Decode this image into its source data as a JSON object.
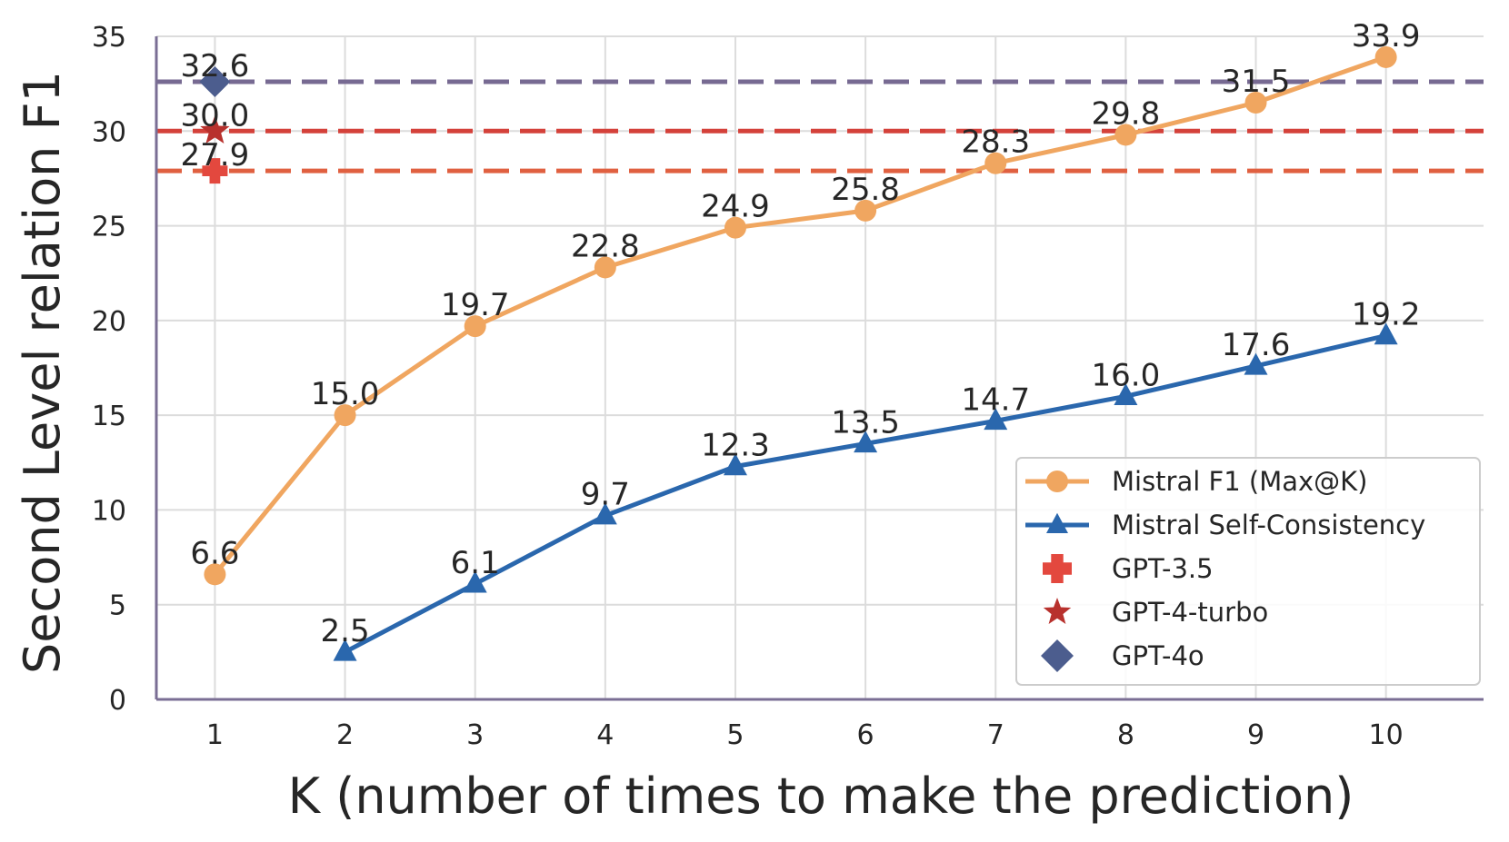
{
  "chart_data": {
    "type": "line",
    "title": "",
    "xlabel": "K (number of times to make the prediction)",
    "ylabel": "Second Level relation F1",
    "x": [
      1,
      2,
      3,
      4,
      5,
      6,
      7,
      8,
      9,
      10
    ],
    "xticks": [
      "1",
      "2",
      "3",
      "4",
      "5",
      "6",
      "7",
      "8",
      "9",
      "10"
    ],
    "yticks": [
      "0",
      "5",
      "10",
      "15",
      "20",
      "25",
      "30",
      "35"
    ],
    "ylim": [
      0,
      35
    ],
    "grid": true,
    "legend_position": "lower-right",
    "series": [
      {
        "name": "Mistral F1 (Max@K)",
        "x": [
          1,
          2,
          3,
          4,
          5,
          6,
          7,
          8,
          9,
          10
        ],
        "values": [
          6.6,
          15.0,
          19.7,
          22.8,
          24.9,
          25.8,
          28.3,
          29.8,
          31.5,
          33.9
        ],
        "labels": [
          "6.6",
          "15.0",
          "19.7",
          "22.8",
          "24.9",
          "25.8",
          "28.3",
          "29.8",
          "31.5",
          "33.9"
        ],
        "color": "#f0a660",
        "marker": "circle"
      },
      {
        "name": "Mistral Self-Consistency",
        "x": [
          2,
          3,
          4,
          5,
          6,
          7,
          8,
          9,
          10
        ],
        "values": [
          2.5,
          6.1,
          9.7,
          12.3,
          13.5,
          14.7,
          16.0,
          17.6,
          19.2
        ],
        "labels": [
          "2.5",
          "6.1",
          "9.7",
          "12.3",
          "13.5",
          "14.7",
          "16.0",
          "17.6",
          "19.2"
        ],
        "color": "#2a67ad",
        "marker": "triangle"
      }
    ],
    "reference_points": [
      {
        "name": "GPT-3.5",
        "x": 1,
        "value": 27.9,
        "label": "27.9",
        "color": "#e3483e",
        "line_color": "#e06040",
        "marker": "plus"
      },
      {
        "name": "GPT-4-turbo",
        "x": 1,
        "value": 30.0,
        "label": "30.0",
        "color": "#b8312d",
        "line_color": "#d4413a",
        "marker": "star"
      },
      {
        "name": "GPT-4o",
        "x": 1,
        "value": 32.6,
        "label": "32.6",
        "color": "#4c5d8e",
        "line_color": "#776a92",
        "marker": "diamond"
      }
    ],
    "colors": {
      "axis": "#7a6e94",
      "grid": "#dcdcdc",
      "text": "#262626"
    }
  }
}
